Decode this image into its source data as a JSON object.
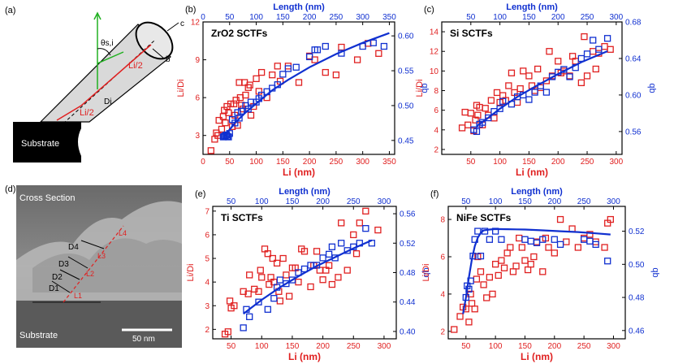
{
  "panel_a": {
    "label": "(a)",
    "theta": "θs,i",
    "c": "c",
    "b": "b",
    "li_half_top": "Li/2",
    "li_half_bottom": "Li/2",
    "di": "Di",
    "substrate": "Substrate"
  },
  "panel_d": {
    "label": "(d)",
    "cross_section": "Cross Section",
    "substrate": "Substrate",
    "scale": "50 nm",
    "d_labels": [
      "D1",
      "D2",
      "D3",
      "D4"
    ],
    "l_labels": [
      "L1",
      "L2",
      "L3",
      "L4"
    ]
  },
  "colors": {
    "red": "#e02020",
    "blue": "#1030d0"
  },
  "chart_data": [
    {
      "id": "b",
      "panel_label": "(b)",
      "title": "ZrO2 SCTFs",
      "type": "scatter",
      "xlabel": "Li (nm)",
      "ylabel_left": "Li/Di",
      "ylabel_right": "qb",
      "top_xlabel": "Length (nm)",
      "xlim": [
        0,
        360
      ],
      "xticks": [
        0,
        50,
        100,
        150,
        200,
        250,
        300,
        350
      ],
      "ylim_left": [
        1.5,
        12
      ],
      "yticks_left": [
        3,
        6,
        9,
        12
      ],
      "ylim_right": [
        0.43,
        0.62
      ],
      "yticks_right": [
        0.45,
        0.5,
        0.55,
        0.6
      ],
      "top_xlim": [
        0,
        360
      ],
      "top_xticks": [
        0,
        50,
        100,
        150,
        200,
        250,
        300,
        350
      ],
      "series": [
        {
          "name": "Li/Di",
          "axis": "left",
          "color": "red",
          "x": [
            15,
            22,
            25,
            28,
            30,
            35,
            38,
            40,
            42,
            45,
            48,
            52,
            55,
            58,
            60,
            62,
            65,
            68,
            70,
            72,
            75,
            78,
            80,
            85,
            88,
            90,
            95,
            100,
            105,
            110,
            120,
            130,
            140,
            145,
            160,
            180,
            200,
            210,
            230,
            250,
            260,
            290,
            310,
            330
          ],
          "y": [
            1.8,
            2.7,
            3.2,
            3.0,
            4.2,
            3.5,
            4.5,
            5.0,
            4.0,
            5.3,
            4.8,
            5.5,
            3.7,
            5.5,
            4.6,
            5.8,
            3.8,
            7.2,
            6.0,
            5.4,
            5.1,
            7.2,
            6.2,
            6.8,
            7.0,
            4.6,
            5.3,
            7.5,
            6.5,
            8.0,
            6.0,
            7.8,
            8.5,
            7.3,
            8.5,
            7.2,
            9.3,
            9.0,
            8.0,
            7.8,
            10.0,
            9.0,
            10.3,
            9.5
          ]
        },
        {
          "name": "qb",
          "axis": "right",
          "color": "blue",
          "x": [
            38,
            40,
            42,
            44,
            46,
            48,
            50,
            55,
            60,
            65,
            68,
            72,
            80,
            85,
            90,
            100,
            105,
            110,
            120,
            130,
            140,
            150,
            160,
            175,
            200,
            210,
            215,
            230,
            260,
            300,
            320,
            340
          ],
          "y": [
            0.455,
            0.456,
            0.457,
            0.458,
            0.456,
            0.455,
            0.46,
            0.48,
            0.475,
            0.49,
            0.482,
            0.492,
            0.5,
            0.495,
            0.505,
            0.505,
            0.51,
            0.515,
            0.52,
            0.525,
            0.53,
            0.545,
            0.553,
            0.555,
            0.57,
            0.58,
            0.58,
            0.585,
            0.575,
            0.585,
            0.59,
            0.585
          ]
        },
        {
          "name": "fit",
          "axis": "right",
          "color": "blue",
          "kind": "line",
          "x": [
            40,
            60,
            80,
            100,
            130,
            160,
            200,
            250,
            300,
            350
          ],
          "y": [
            0.456,
            0.475,
            0.49,
            0.503,
            0.522,
            0.537,
            0.555,
            0.574,
            0.59,
            0.604
          ]
        }
      ]
    },
    {
      "id": "c",
      "panel_label": "(c)",
      "title": "Si SCTFs",
      "type": "scatter",
      "xlabel": "Li (nm)",
      "ylabel_left": "Li/Di",
      "ylabel_right": "qb",
      "top_xlabel": "Length (nm)",
      "xlim": [
        0,
        310
      ],
      "xticks": [
        50,
        100,
        150,
        200,
        250,
        300
      ],
      "ylim_left": [
        1.5,
        15
      ],
      "yticks_left": [
        2,
        4,
        6,
        8,
        10,
        12,
        14
      ],
      "ylim_right": [
        0.535,
        0.68
      ],
      "yticks_right": [
        0.56,
        0.6,
        0.64,
        0.68
      ],
      "top_xlim": [
        0,
        310
      ],
      "top_xticks": [
        50,
        100,
        150,
        200,
        250,
        300
      ],
      "series": [
        {
          "name": "Li/Di",
          "axis": "left",
          "color": "red",
          "x": [
            35,
            40,
            45,
            50,
            55,
            58,
            60,
            62,
            65,
            70,
            75,
            80,
            85,
            90,
            95,
            100,
            105,
            110,
            115,
            120,
            125,
            130,
            135,
            140,
            150,
            155,
            160,
            165,
            170,
            180,
            185,
            190,
            200,
            205,
            210,
            220,
            225,
            230,
            240,
            245,
            250,
            260,
            265,
            270,
            280,
            290
          ],
          "y": [
            4.2,
            5.8,
            4.5,
            5.7,
            3.9,
            5.0,
            6.5,
            5.5,
            6.3,
            4.5,
            6.2,
            5.5,
            7.0,
            5.2,
            7.8,
            6.8,
            7.5,
            7.0,
            8.5,
            9.8,
            7.8,
            6.8,
            8.2,
            10.0,
            9.5,
            8.5,
            8.0,
            10.2,
            8.3,
            9.0,
            12.0,
            9.5,
            11.0,
            9.8,
            10.0,
            9.5,
            11.5,
            11.0,
            8.8,
            13.5,
            9.5,
            12.0,
            10.2,
            11.8,
            12.5,
            12.2
          ]
        },
        {
          "name": "qb",
          "axis": "right",
          "color": "blue",
          "x": [
            55,
            60,
            65,
            70,
            80,
            90,
            100,
            105,
            120,
            130,
            140,
            150,
            160,
            170,
            180,
            190,
            200,
            210,
            220,
            230,
            240,
            250,
            260,
            270,
            285
          ],
          "y": [
            0.562,
            0.56,
            0.568,
            0.57,
            0.575,
            0.582,
            0.585,
            0.593,
            0.59,
            0.598,
            0.6,
            0.595,
            0.603,
            0.61,
            0.603,
            0.62,
            0.625,
            0.628,
            0.62,
            0.63,
            0.64,
            0.645,
            0.66,
            0.65,
            0.662
          ]
        },
        {
          "name": "fit",
          "axis": "right",
          "color": "blue",
          "kind": "line",
          "x": [
            60,
            80,
            100,
            130,
            160,
            200,
            240,
            285
          ],
          "y": [
            0.566,
            0.575,
            0.585,
            0.598,
            0.609,
            0.623,
            0.636,
            0.648
          ]
        }
      ]
    },
    {
      "id": "e",
      "panel_label": "(e)",
      "title": "Ti SCTFs",
      "type": "scatter",
      "xlabel": "Li (nm)",
      "ylabel_left": "Li/Di",
      "ylabel_right": "qb",
      "top_xlabel": "Length (nm)",
      "xlim": [
        20,
        320
      ],
      "xticks": [
        50,
        100,
        150,
        200,
        250,
        300
      ],
      "ylim_left": [
        1.6,
        7.2
      ],
      "yticks_left": [
        2,
        3,
        4,
        5,
        6,
        7
      ],
      "ylim_right": [
        0.39,
        0.57
      ],
      "yticks_right": [
        0.4,
        0.44,
        0.48,
        0.52,
        0.56
      ],
      "top_xlim": [
        20,
        320
      ],
      "top_xticks": [
        50,
        100,
        150,
        200,
        250,
        300
      ],
      "series": [
        {
          "name": "Li/Di",
          "axis": "left",
          "color": "red",
          "x": [
            40,
            45,
            48,
            50,
            55,
            70,
            78,
            80,
            88,
            95,
            98,
            100,
            105,
            110,
            112,
            115,
            118,
            120,
            125,
            128,
            130,
            135,
            140,
            145,
            150,
            155,
            160,
            165,
            170,
            180,
            185,
            190,
            195,
            200,
            205,
            210,
            215,
            225,
            230,
            240,
            250,
            255,
            260,
            270,
            290
          ],
          "y": [
            1.8,
            1.9,
            3.2,
            2.9,
            3.0,
            3.6,
            3.5,
            4.3,
            3.7,
            3.6,
            4.5,
            4.2,
            5.4,
            5.2,
            3.9,
            4.2,
            5.0,
            4.0,
            4.8,
            3.6,
            3.2,
            5.0,
            4.3,
            3.4,
            4.6,
            4.6,
            4.0,
            5.4,
            5.3,
            3.8,
            4.7,
            5.3,
            4.5,
            4.1,
            4.5,
            4.7,
            3.9,
            4.2,
            6.5,
            4.5,
            6.0,
            5.2,
            6.5,
            7.0,
            6.2
          ]
        },
        {
          "name": "qb",
          "axis": "right",
          "color": "blue",
          "x": [
            70,
            75,
            80,
            95,
            110,
            120,
            125,
            130,
            140,
            150,
            160,
            170,
            180,
            190,
            200,
            210,
            215,
            220,
            230,
            240,
            250,
            260,
            270,
            280
          ],
          "y": [
            0.405,
            0.43,
            0.42,
            0.44,
            0.43,
            0.445,
            0.46,
            0.47,
            0.465,
            0.47,
            0.48,
            0.485,
            0.49,
            0.49,
            0.5,
            0.505,
            0.515,
            0.5,
            0.52,
            0.51,
            0.515,
            0.52,
            0.54,
            0.52
          ]
        },
        {
          "name": "fit",
          "axis": "right",
          "color": "blue",
          "kind": "line",
          "x": [
            70,
            100,
            130,
            160,
            190,
            220,
            250,
            280
          ],
          "y": [
            0.424,
            0.443,
            0.46,
            0.475,
            0.489,
            0.501,
            0.513,
            0.524
          ]
        }
      ]
    },
    {
      "id": "f",
      "panel_label": "(f)",
      "title": "NiFe SCTFs",
      "type": "scatter",
      "xlabel": "Li (nm)",
      "ylabel_left": "Li/Di",
      "ylabel_right": "qb",
      "top_xlabel": "Length (nm)",
      "xlim": [
        20,
        320
      ],
      "xticks": [
        50,
        100,
        150,
        200,
        250,
        300
      ],
      "ylim_left": [
        1.6,
        8.7
      ],
      "yticks_left": [
        2,
        4,
        6,
        8
      ],
      "ylim_right": [
        0.455,
        0.535
      ],
      "yticks_right": [
        0.46,
        0.48,
        0.5,
        0.52
      ],
      "top_xlim": [
        20,
        320
      ],
      "top_xticks": [
        50,
        100,
        150,
        200,
        250,
        300
      ],
      "series": [
        {
          "name": "Li/Di",
          "axis": "left",
          "color": "red",
          "x": [
            30,
            40,
            45,
            50,
            55,
            58,
            60,
            65,
            68,
            70,
            75,
            80,
            85,
            90,
            95,
            100,
            105,
            110,
            115,
            120,
            125,
            130,
            135,
            140,
            145,
            150,
            155,
            160,
            165,
            170,
            180,
            185,
            190,
            200,
            210,
            220,
            230,
            240,
            250,
            260,
            270,
            285,
            290,
            295
          ],
          "y": [
            2.1,
            2.8,
            3.3,
            3.2,
            2.5,
            4.0,
            3.5,
            3.2,
            4.8,
            6.0,
            5.2,
            4.5,
            3.8,
            4.9,
            4.0,
            5.6,
            5.0,
            5.8,
            5.4,
            6.2,
            6.5,
            5.2,
            5.5,
            7.0,
            6.5,
            5.8,
            5.3,
            5.6,
            6.0,
            6.8,
            5.2,
            7.0,
            6.5,
            6.2,
            8.0,
            6.8,
            7.5,
            6.5,
            7.0,
            7.2,
            6.8,
            6.5,
            7.8,
            8.0
          ]
        },
        {
          "name": "qb",
          "axis": "right",
          "color": "blue",
          "x": [
            50,
            52,
            55,
            58,
            62,
            65,
            70,
            75,
            82,
            90,
            100,
            110,
            150,
            160,
            170,
            180,
            200,
            210,
            250,
            260,
            270,
            290
          ],
          "y": [
            0.48,
            0.487,
            0.485,
            0.49,
            0.505,
            0.515,
            0.52,
            0.505,
            0.52,
            0.515,
            0.52,
            0.515,
            0.515,
            0.514,
            0.513,
            0.515,
            0.515,
            0.512,
            0.515,
            0.514,
            0.512,
            0.502
          ]
        },
        {
          "name": "fit",
          "axis": "right",
          "color": "blue",
          "kind": "line",
          "x": [
            45,
            50,
            55,
            60,
            65,
            70,
            75,
            80,
            90,
            100,
            120,
            150,
            180,
            210,
            240,
            270,
            295
          ],
          "y": [
            0.47,
            0.48,
            0.492,
            0.503,
            0.511,
            0.516,
            0.519,
            0.5205,
            0.521,
            0.5213,
            0.5212,
            0.521,
            0.5205,
            0.52,
            0.5195,
            0.5187,
            0.518
          ]
        }
      ]
    }
  ]
}
